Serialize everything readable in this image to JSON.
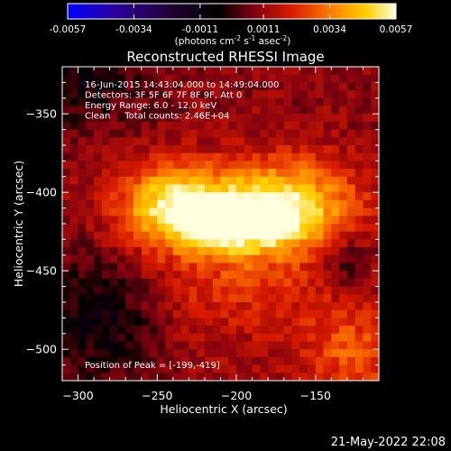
{
  "chart_data": {
    "type": "heatmap",
    "title": "Reconstructed RHESSI Image",
    "xlabel": "Heliocentric X (arcsec)",
    "ylabel": "Heliocentric Y (arcsec)",
    "xlim": [
      -310,
      -110
    ],
    "ylim": [
      -520,
      -320
    ],
    "x_ticks": [
      -300,
      -250,
      -200,
      -150
    ],
    "y_ticks": [
      -350,
      -400,
      -450,
      -500
    ],
    "colorbar": {
      "ticks": [
        "-0.0057",
        "-0.0034",
        "-0.0011",
        "0.0011",
        "0.0034",
        "0.0057"
      ],
      "min": -0.0057,
      "max": 0.0057,
      "unit_label_main": "(photons cm",
      "unit_exp1": "-2",
      "unit_mid": " s",
      "unit_exp2": "-1",
      "unit_mid2": " asec",
      "unit_exp3": "-2",
      "unit_end": ")"
    },
    "annotations": [
      "16-Jun-2015 14:43:04.000 to 14:49:04.000",
      "Detectors: 3F 5F 6F 7F 8F 9F, Att 0",
      "Energy Range: 6.0 - 12.0 keV",
      "Clean     Total counts: 2.46E+04"
    ],
    "peak_label": "Position of Peak = [-199,-419]",
    "peak": [
      -199,
      -419
    ],
    "colors": {
      "colormap": [
        "#0000ff",
        "#1a0040",
        "#000000",
        "#6a0010",
        "#d02000",
        "#ff8800",
        "#ffff40",
        "#ffffff"
      ],
      "background": "#000000",
      "text": "#ffffff"
    }
  },
  "footer_timestamp": "21-May-2022 22:08"
}
